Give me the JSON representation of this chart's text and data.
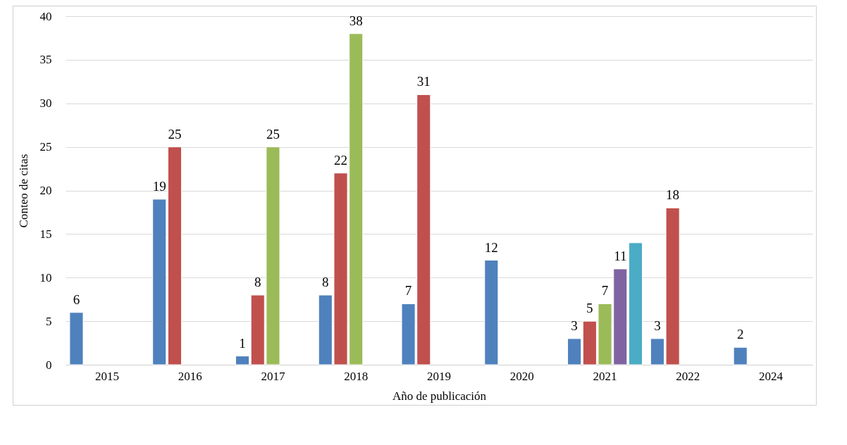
{
  "chart_data": {
    "type": "bar",
    "xlabel": "Año de publicación",
    "ylabel": "Conteo de citas",
    "categories": [
      "2015",
      "2016",
      "2017",
      "2018",
      "2019",
      "2020",
      "2021",
      "2022",
      "2024"
    ],
    "ylim": [
      0,
      40
    ],
    "yticks": [
      0,
      5,
      10,
      15,
      20,
      25,
      30,
      35,
      40
    ],
    "grid": "y",
    "legend": false,
    "series": [
      {
        "color": "#4f81bd",
        "values": [
          6,
          19,
          1,
          8,
          7,
          12,
          3,
          3,
          2
        ],
        "value_labels": [
          "6",
          "19",
          "1",
          "8",
          "7",
          "12",
          "3",
          "3",
          "2"
        ]
      },
      {
        "color": "#c0504d",
        "values": [
          null,
          25,
          8,
          22,
          31,
          null,
          5,
          18,
          null
        ],
        "value_labels": [
          null,
          "25",
          "8",
          "22",
          "31",
          null,
          "5",
          "18",
          null
        ]
      },
      {
        "color": "#9bbb59",
        "values": [
          null,
          null,
          25,
          38,
          null,
          null,
          7,
          null,
          null
        ],
        "value_labels": [
          null,
          null,
          "25",
          "38",
          null,
          null,
          "7",
          null,
          null
        ]
      },
      {
        "color": "#8064a2",
        "values": [
          null,
          null,
          null,
          null,
          null,
          null,
          11,
          null,
          null
        ],
        "value_labels": [
          null,
          null,
          null,
          null,
          null,
          null,
          "11",
          null,
          null
        ]
      },
      {
        "color": "#4bacc6",
        "values": [
          null,
          null,
          null,
          null,
          null,
          null,
          14,
          null,
          null
        ],
        "value_labels": [
          null,
          null,
          null,
          null,
          null,
          null,
          null,
          null,
          null
        ]
      }
    ]
  }
}
